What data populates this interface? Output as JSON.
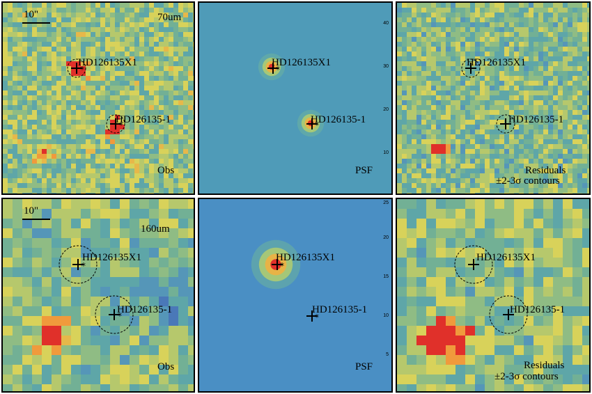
{
  "panels": [
    {
      "band": "70um",
      "kind": "Obs",
      "scalebar": "10\"",
      "sources": [
        "HD126135X1",
        "HD126135-1"
      ]
    },
    {
      "band": "",
      "kind": "PSF",
      "scalebar": "",
      "sources": [
        "HD126135X1",
        "HD126135-1"
      ],
      "ticks": [
        "40",
        "30",
        "20",
        "10"
      ]
    },
    {
      "band": "",
      "kind": "Residuals",
      "kind2": "±2-3σ contours",
      "scalebar": "",
      "sources": [
        "HD126135X1",
        "HD126135-1"
      ]
    },
    {
      "band": "160um",
      "kind": "Obs",
      "scalebar": "10\"",
      "sources": [
        "HD126135X1",
        "HD126135-1"
      ]
    },
    {
      "band": "",
      "kind": "PSF",
      "scalebar": "",
      "sources": [
        "HD126135X1",
        "HD126135-1"
      ],
      "ticks": [
        "25",
        "20",
        "15",
        "10",
        "5"
      ]
    },
    {
      "band": "",
      "kind": "Residuals",
      "kind2": "±2-3σ contours",
      "scalebar": "",
      "sources": [
        "HD126135X1",
        "HD126135-1"
      ]
    }
  ],
  "colors": {
    "background_obs_top": "#6fa79a",
    "background_psf": "#4f9bb8",
    "hot": "#e0302a",
    "contour": "#000000"
  }
}
